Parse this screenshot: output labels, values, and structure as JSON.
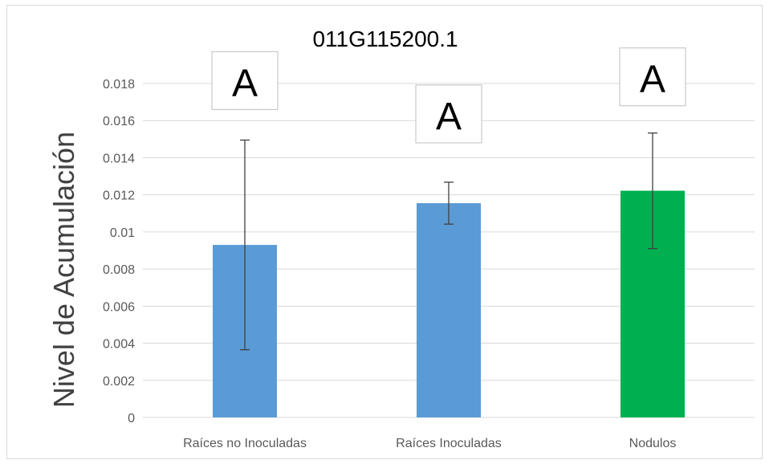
{
  "chart_data": {
    "type": "bar",
    "title": "011G115200.1",
    "xlabel": "",
    "ylabel": "Nivel de Acumulación",
    "categories": [
      "Raíces no Inoculadas",
      "Raíces Inoculadas",
      "Nodulos"
    ],
    "values": [
      0.0093,
      0.01155,
      0.01222
    ],
    "error_low": [
      0.00365,
      0.01042,
      0.0091
    ],
    "error_high": [
      0.01495,
      0.01268,
      0.01533
    ],
    "annotations": [
      "A",
      "A",
      "A"
    ],
    "colors": [
      "#5b9bd5",
      "#5b9bd5",
      "#00b050"
    ],
    "ylim": [
      0,
      0.018
    ],
    "yticks": [
      "0",
      "0.002",
      "0.004",
      "0.006",
      "0.008",
      "0.01",
      "0.012",
      "0.014",
      "0.016",
      "0.018"
    ],
    "ytick_values": [
      0,
      0.002,
      0.004,
      0.006,
      0.008,
      0.01,
      0.012,
      0.014,
      0.016,
      0.018
    ],
    "annotation_levels": [
      0.0166,
      0.0148,
      0.0168
    ],
    "grid": true,
    "legend": "none"
  }
}
